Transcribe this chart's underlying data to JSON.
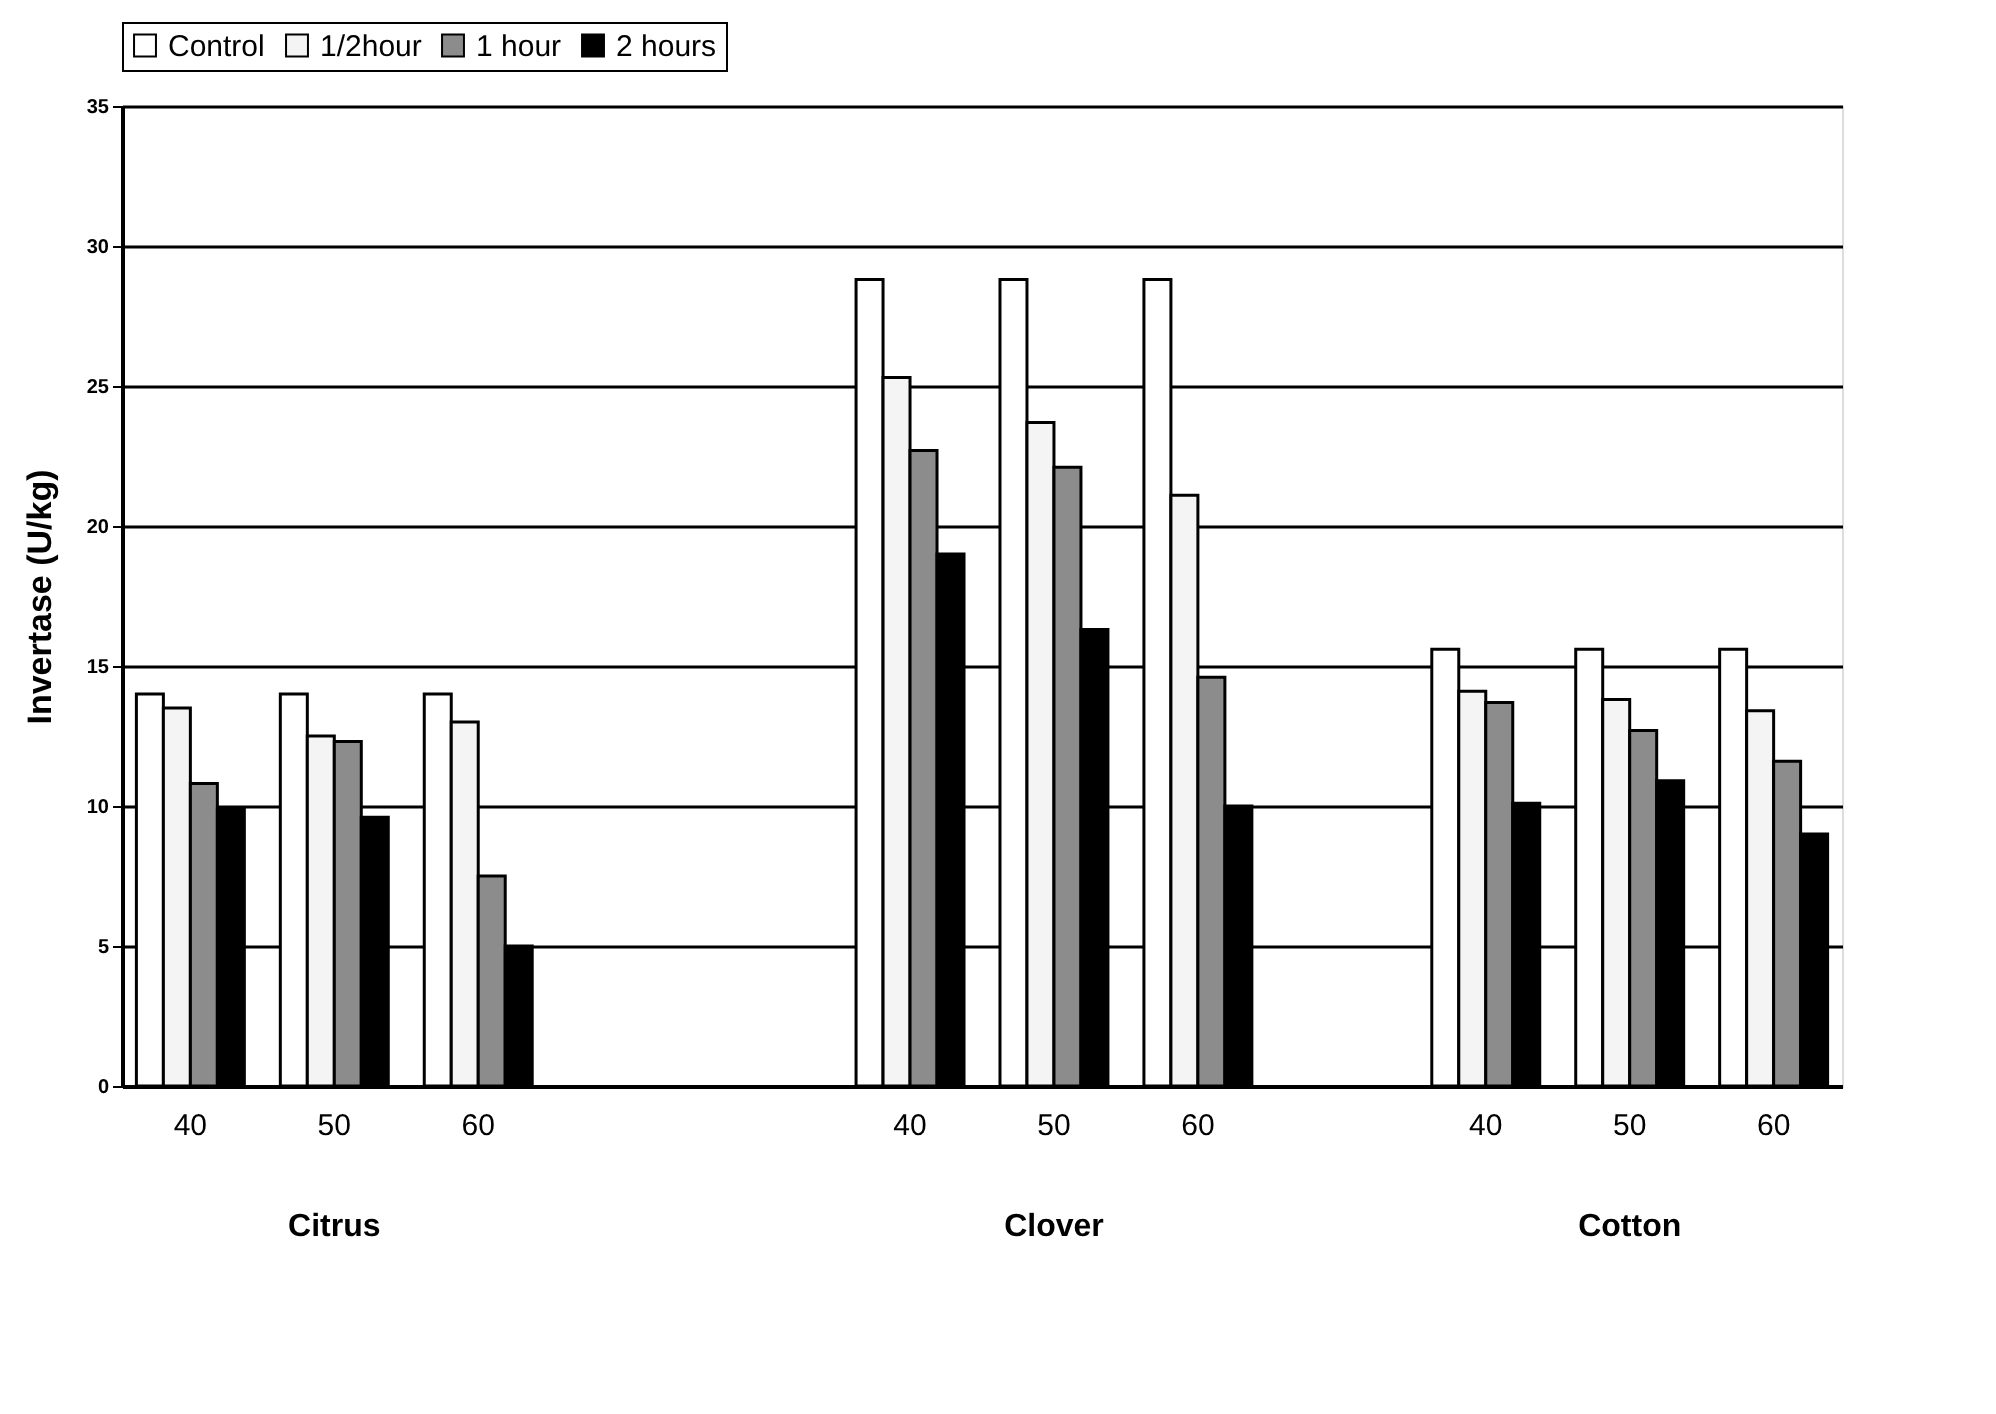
{
  "chart_data": {
    "type": "bar",
    "ylabel": "Invertase (U/kg)",
    "categories": [
      "40",
      "50",
      "60",
      null,
      null,
      "40",
      "50",
      "60",
      null,
      "40",
      "50",
      "60"
    ],
    "series": [
      {
        "name": "Control",
        "color": "#ffffff",
        "values": [
          14,
          14,
          14,
          null,
          null,
          28.8,
          28.8,
          28.8,
          null,
          15.6,
          15.6,
          15.6
        ]
      },
      {
        "name": "1/2hour",
        "color": "#f4f4f4",
        "values": [
          13.5,
          12.5,
          13,
          null,
          null,
          25.3,
          23.7,
          21.1,
          null,
          14.1,
          13.8,
          13.4
        ]
      },
      {
        "name": "1 hour",
        "color": "#8c8c8c",
        "values": [
          10.8,
          12.3,
          7.5,
          null,
          null,
          22.7,
          22.1,
          14.6,
          null,
          13.7,
          12.7,
          11.6
        ]
      },
      {
        "name": "2 hours",
        "color": "#000000",
        "values": [
          9.9,
          9.6,
          5,
          null,
          null,
          19,
          16.3,
          10,
          null,
          10.1,
          10.9,
          9
        ]
      }
    ],
    "ylim": [
      0,
      35
    ],
    "yticks": [
      0,
      5,
      10,
      15,
      20,
      25,
      30,
      35
    ],
    "grid": "y",
    "legend": "top",
    "annotations": [
      "Citrus",
      "Clover",
      "Cotton"
    ]
  }
}
